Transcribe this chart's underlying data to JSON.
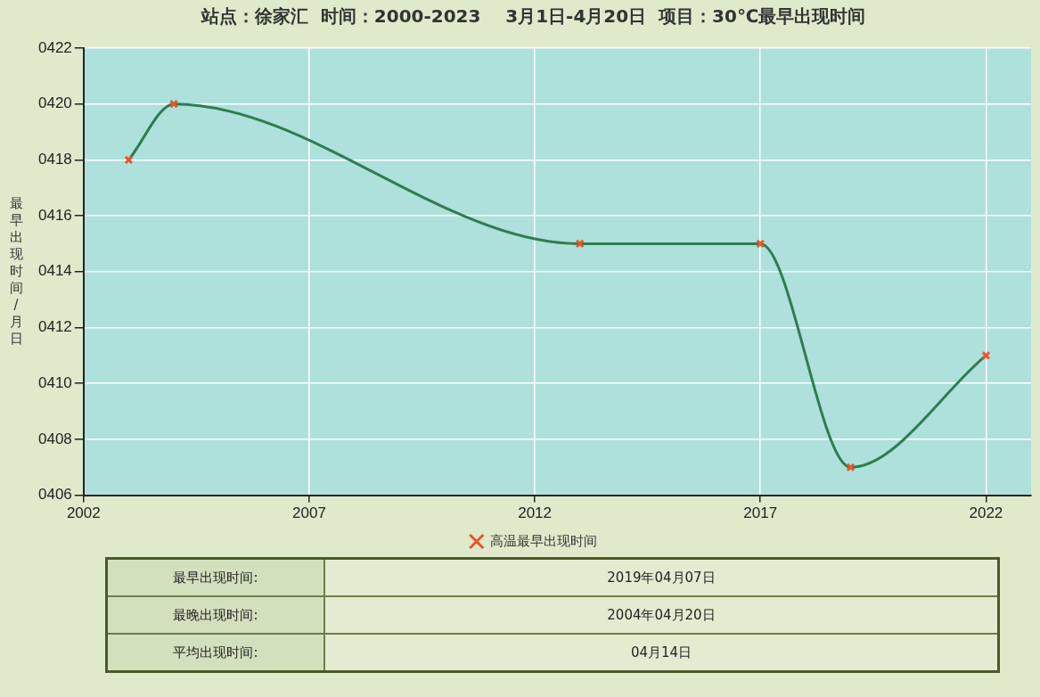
{
  "chart_data": {
    "type": "line",
    "title": "站点：徐家汇  时间：2000-2023    3月1日-4月20日  项目：30℃最早出现时间",
    "ylabel": "最早出现时间/月日",
    "x": [
      2003,
      2004,
      2013,
      2017,
      2019,
      2022
    ],
    "series": [
      {
        "name": "高温最早出现时间",
        "color": "#2e7d4f",
        "values": [
          418,
          420,
          415,
          415,
          407,
          411
        ]
      }
    ],
    "xlim": [
      2002,
      2023
    ],
    "xticks": [
      2002,
      2007,
      2012,
      2017,
      2022
    ],
    "ylim": [
      406,
      422
    ],
    "yticks": [
      {
        "value": 406,
        "label": "0406"
      },
      {
        "value": 408,
        "label": "0408"
      },
      {
        "value": 410,
        "label": "0410"
      },
      {
        "value": 412,
        "label": "0412"
      },
      {
        "value": 414,
        "label": "0414"
      },
      {
        "value": 416,
        "label": "0416"
      },
      {
        "value": 418,
        "label": "0418"
      },
      {
        "value": 420,
        "label": "0420"
      },
      {
        "value": 422,
        "label": "0422"
      }
    ],
    "grid": true,
    "legend": "bottom",
    "marker": "cross",
    "line_style": "solid",
    "annotations": [
      "最早出现时间:",
      "2019年04月07日",
      "最晚出现时间:",
      "2004年04月20日",
      "平均出现时间:",
      "04月14日"
    ]
  }
}
